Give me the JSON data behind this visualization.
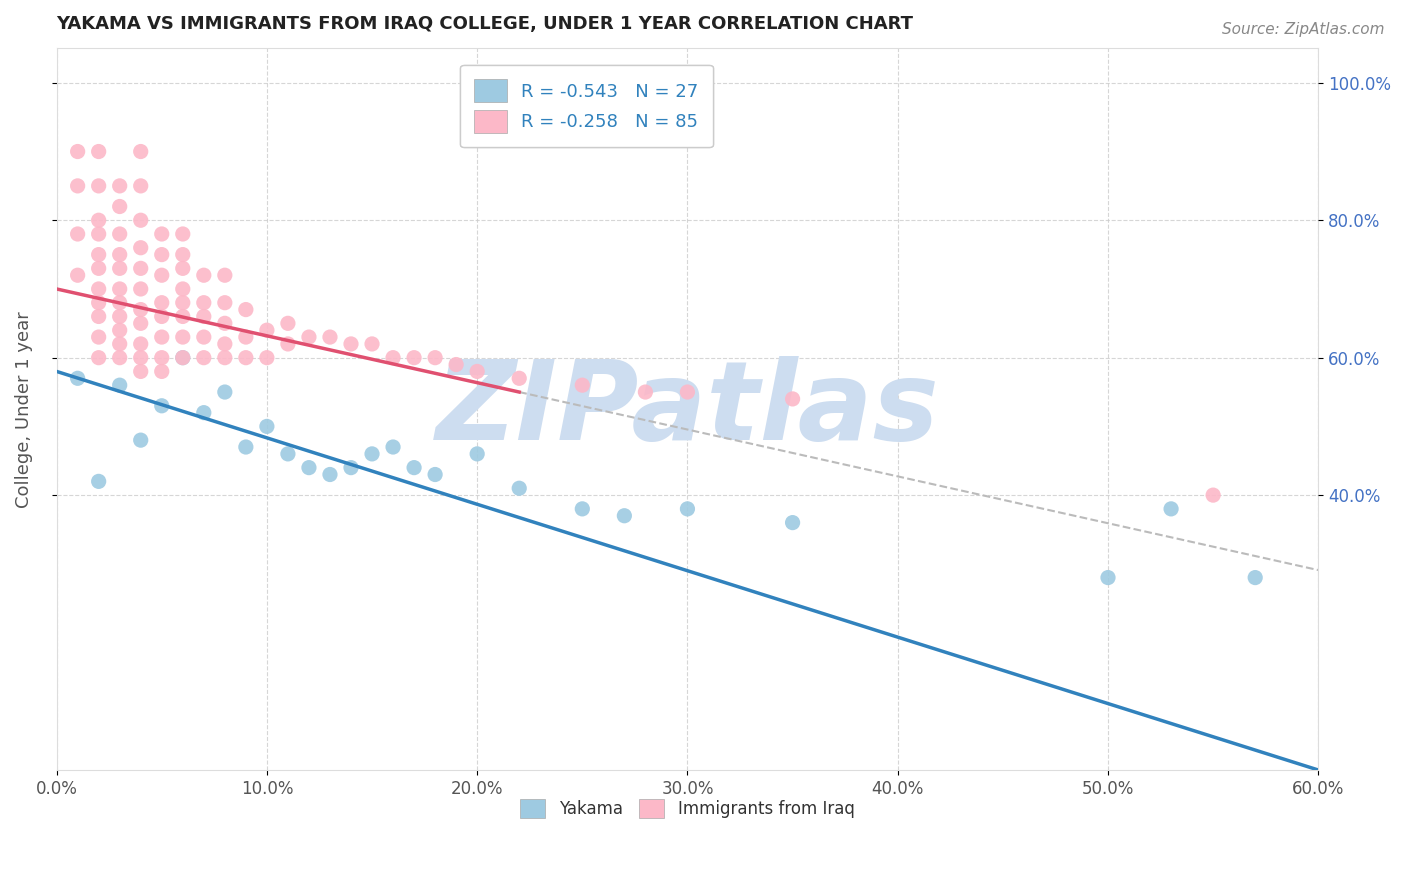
{
  "title": "YAKAMA VS IMMIGRANTS FROM IRAQ COLLEGE, UNDER 1 YEAR CORRELATION CHART",
  "source_text": "Source: ZipAtlas.com",
  "ylabel": "College, Under 1 year",
  "xlim": [
    0.0,
    0.6
  ],
  "ylim": [
    0.0,
    1.05
  ],
  "xtick_labels": [
    "0.0%",
    "10.0%",
    "20.0%",
    "30.0%",
    "40.0%",
    "50.0%",
    "60.0%"
  ],
  "xtick_vals": [
    0.0,
    0.1,
    0.2,
    0.3,
    0.4,
    0.5,
    0.6
  ],
  "ytick_labels": [
    "40.0%",
    "60.0%",
    "80.0%",
    "100.0%"
  ],
  "ytick_vals": [
    0.4,
    0.6,
    0.8,
    1.0
  ],
  "legend_r1": "R = -0.543",
  "legend_n1": "N = 27",
  "legend_r2": "R = -0.258",
  "legend_n2": "N = 85",
  "color_yakama": "#9ecae1",
  "color_iraq": "#fcb8c8",
  "color_line_yakama": "#3182bd",
  "color_line_iraq": "#e05070",
  "color_legend_text": "#3182bd",
  "color_grid": "#cccccc",
  "watermark": "ZIPatlas",
  "watermark_color": "#cdddf0",
  "background": "#ffffff",
  "yakama_x": [
    0.01,
    0.02,
    0.03,
    0.04,
    0.05,
    0.06,
    0.07,
    0.08,
    0.09,
    0.1,
    0.11,
    0.12,
    0.13,
    0.14,
    0.15,
    0.16,
    0.17,
    0.18,
    0.2,
    0.22,
    0.25,
    0.27,
    0.3,
    0.35,
    0.5,
    0.53,
    0.57
  ],
  "yakama_y": [
    0.57,
    0.42,
    0.56,
    0.48,
    0.53,
    0.6,
    0.52,
    0.55,
    0.47,
    0.5,
    0.46,
    0.44,
    0.43,
    0.44,
    0.46,
    0.47,
    0.44,
    0.43,
    0.46,
    0.41,
    0.38,
    0.37,
    0.38,
    0.36,
    0.28,
    0.38,
    0.28
  ],
  "iraq_x": [
    0.01,
    0.01,
    0.01,
    0.01,
    0.02,
    0.02,
    0.02,
    0.02,
    0.02,
    0.02,
    0.02,
    0.02,
    0.02,
    0.02,
    0.02,
    0.03,
    0.03,
    0.03,
    0.03,
    0.03,
    0.03,
    0.03,
    0.03,
    0.03,
    0.03,
    0.03,
    0.04,
    0.04,
    0.04,
    0.04,
    0.04,
    0.04,
    0.04,
    0.04,
    0.04,
    0.04,
    0.04,
    0.05,
    0.05,
    0.05,
    0.05,
    0.05,
    0.05,
    0.05,
    0.05,
    0.06,
    0.06,
    0.06,
    0.06,
    0.06,
    0.06,
    0.06,
    0.06,
    0.07,
    0.07,
    0.07,
    0.07,
    0.07,
    0.08,
    0.08,
    0.08,
    0.08,
    0.08,
    0.09,
    0.09,
    0.09,
    0.1,
    0.1,
    0.11,
    0.11,
    0.12,
    0.13,
    0.14,
    0.15,
    0.16,
    0.17,
    0.18,
    0.19,
    0.2,
    0.22,
    0.25,
    0.28,
    0.3,
    0.35,
    0.55
  ],
  "iraq_y": [
    0.72,
    0.78,
    0.85,
    0.9,
    0.6,
    0.63,
    0.66,
    0.68,
    0.7,
    0.73,
    0.75,
    0.78,
    0.8,
    0.85,
    0.9,
    0.6,
    0.62,
    0.64,
    0.66,
    0.68,
    0.7,
    0.73,
    0.75,
    0.78,
    0.82,
    0.85,
    0.58,
    0.6,
    0.62,
    0.65,
    0.67,
    0.7,
    0.73,
    0.76,
    0.8,
    0.85,
    0.9,
    0.58,
    0.6,
    0.63,
    0.66,
    0.68,
    0.72,
    0.75,
    0.78,
    0.6,
    0.63,
    0.66,
    0.68,
    0.7,
    0.73,
    0.75,
    0.78,
    0.6,
    0.63,
    0.66,
    0.68,
    0.72,
    0.6,
    0.62,
    0.65,
    0.68,
    0.72,
    0.6,
    0.63,
    0.67,
    0.6,
    0.64,
    0.62,
    0.65,
    0.63,
    0.63,
    0.62,
    0.62,
    0.6,
    0.6,
    0.6,
    0.59,
    0.58,
    0.57,
    0.56,
    0.55,
    0.55,
    0.54,
    0.4
  ]
}
